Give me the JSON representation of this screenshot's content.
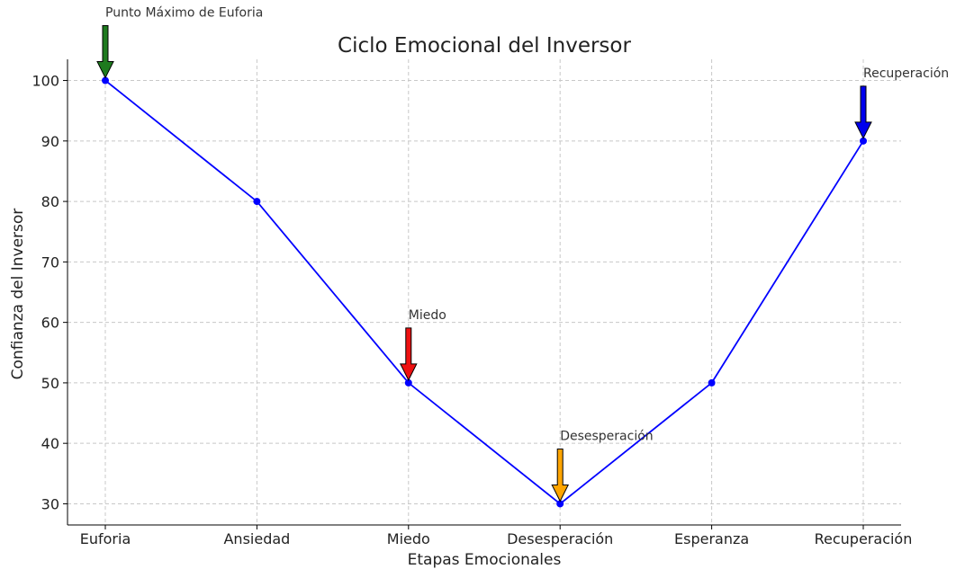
{
  "chart_data": {
    "type": "line",
    "title": "Ciclo Emocional del Inversor",
    "xlabel": "Etapas Emocionales",
    "ylabel": "Confianza del Inversor",
    "categories": [
      "Euforia",
      "Ansiedad",
      "Miedo",
      "Desesperación",
      "Esperanza",
      "Recuperación"
    ],
    "series": [
      {
        "color": "#0000ff",
        "values": [
          100,
          80,
          50,
          30,
          50,
          90
        ]
      }
    ],
    "ylim": [
      26.5,
      103.5
    ],
    "yticks": [
      30,
      40,
      50,
      60,
      70,
      80,
      90,
      100
    ],
    "grid": true,
    "annotations": [
      {
        "category_index": 0,
        "value": 100,
        "text": "Punto Máximo de Euforia",
        "color": "#1e7a1e"
      },
      {
        "category_index": 2,
        "value": 50,
        "text": "Miedo",
        "color": "#ee1111"
      },
      {
        "category_index": 3,
        "value": 30,
        "text": "Desesperación",
        "color": "#ffa500"
      },
      {
        "category_index": 5,
        "value": 90,
        "text": "Recuperación",
        "color": "#0000ee"
      }
    ]
  }
}
